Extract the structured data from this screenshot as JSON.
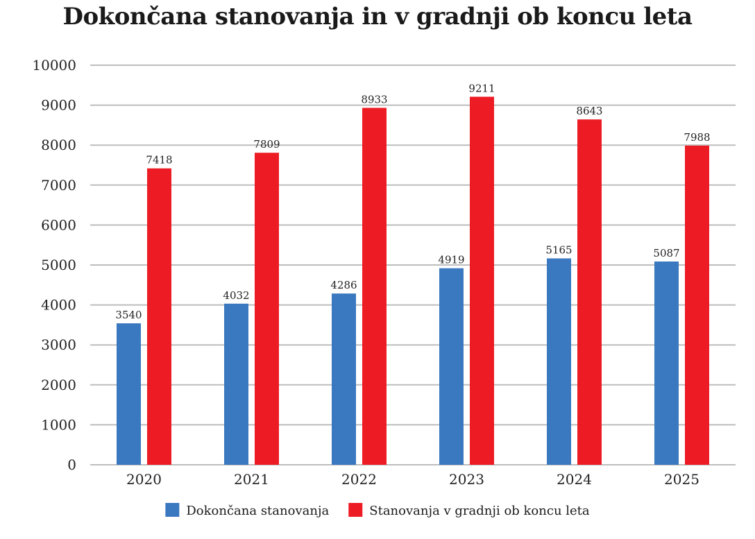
{
  "chart_data": {
    "type": "bar",
    "title": "Dokončana stanovanja in v gradnji ob koncu leta",
    "xlabel": "",
    "ylabel": "",
    "categories": [
      "2020",
      "2021",
      "2022",
      "2023",
      "2024",
      "2025"
    ],
    "series": [
      {
        "name": "Dokončana stanovanja",
        "color": "#3a78bf",
        "values": [
          3540,
          4032,
          4286,
          4919,
          5165,
          5087
        ]
      },
      {
        "name": "Stanovanja v gradnji ob koncu leta",
        "color": "#ed1c24",
        "values": [
          7418,
          7809,
          8933,
          9211,
          8643,
          7988
        ]
      }
    ],
    "ylim": [
      0,
      10000
    ],
    "yticks": [
      0,
      1000,
      2000,
      3000,
      4000,
      5000,
      6000,
      7000,
      8000,
      9000,
      10000
    ],
    "grid": true,
    "legend_position": "bottom"
  }
}
